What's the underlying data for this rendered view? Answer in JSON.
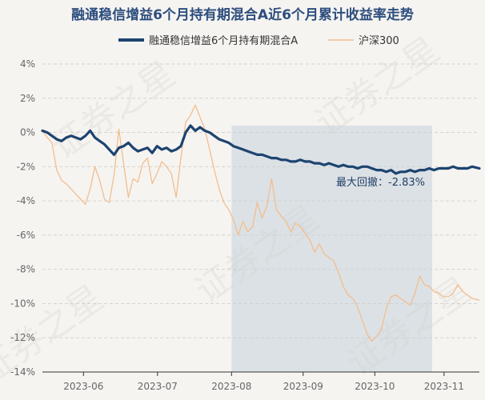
{
  "title": "融通稳信增益6个月持有期混合A近6个月累计收益率走势",
  "colors": {
    "background": "#f6f4f1",
    "fund": "#1d4470",
    "index": "#f2be8f",
    "highlight": "#c6d1db",
    "title": "#2d4e7e"
  },
  "watermark": "证券之星",
  "annotation": "最大回撤：-2.83%",
  "chart_data": {
    "type": "line",
    "title": "融通稳信增益6个月持有期混合A近6个月累计收益率走势",
    "xlabel": "",
    "ylabel": "",
    "ylim": [
      -14,
      4
    ],
    "yticks": [
      "4%",
      "2%",
      "0%",
      "-2%",
      "-4%",
      "-6%",
      "-8%",
      "-10%",
      "-12%",
      "-14%"
    ],
    "ytick_values": [
      4,
      2,
      0,
      -2,
      -4,
      -6,
      -8,
      -10,
      -12,
      -14
    ],
    "xticks": [
      "2023-06",
      "2023-07",
      "2023-08",
      "2023-09",
      "2023-10",
      "2023-11"
    ],
    "xtick_positions": [
      17.2,
      48.2,
      79.2,
      109.2,
      139.2,
      168.2
    ],
    "x_range": [
      0,
      183
    ],
    "grid": true,
    "legend": "top",
    "max_drawdown": {
      "label": "最大回撤：-2.83%",
      "x_start": 79.2,
      "x_end": 163.2
    },
    "series": [
      {
        "name": "融通稳信增益6个月持有期混合A",
        "x": [
          0,
          2,
          4,
          6,
          8,
          10,
          12,
          14,
          16,
          18,
          20,
          22,
          24,
          26,
          28,
          30,
          32,
          34,
          36,
          38,
          40,
          42,
          44,
          46,
          48,
          50,
          52,
          54,
          56,
          58,
          60,
          62,
          64,
          66,
          68,
          70,
          72,
          74,
          76,
          78,
          80,
          82,
          84,
          86,
          88,
          90,
          92,
          94,
          96,
          98,
          100,
          102,
          104,
          106,
          108,
          110,
          112,
          114,
          116,
          118,
          120,
          122,
          124,
          126,
          128,
          130,
          132,
          134,
          136,
          138,
          140,
          142,
          144,
          146,
          148,
          150,
          152,
          154,
          156,
          158,
          160,
          162,
          164,
          166,
          168,
          170,
          172,
          174,
          176,
          178,
          180,
          183
        ],
        "values": [
          0.1,
          0.0,
          -0.2,
          -0.4,
          -0.5,
          -0.3,
          -0.2,
          -0.3,
          -0.4,
          -0.2,
          0.1,
          -0.3,
          -0.5,
          -0.7,
          -1.0,
          -1.3,
          -0.9,
          -0.8,
          -0.6,
          -0.9,
          -1.1,
          -1.0,
          -0.9,
          -1.2,
          -0.8,
          -1.0,
          -0.9,
          -1.1,
          -1.0,
          -0.8,
          0.0,
          0.4,
          0.1,
          0.3,
          0.1,
          0.0,
          -0.2,
          -0.4,
          -0.5,
          -0.6,
          -0.8,
          -0.9,
          -1.0,
          -1.1,
          -1.2,
          -1.3,
          -1.3,
          -1.4,
          -1.5,
          -1.5,
          -1.6,
          -1.6,
          -1.7,
          -1.7,
          -1.6,
          -1.7,
          -1.7,
          -1.8,
          -1.8,
          -1.9,
          -1.8,
          -1.9,
          -2.0,
          -1.9,
          -2.0,
          -2.0,
          -2.1,
          -2.0,
          -2.0,
          -2.1,
          -2.2,
          -2.2,
          -2.3,
          -2.2,
          -2.4,
          -2.3,
          -2.3,
          -2.2,
          -2.3,
          -2.2,
          -2.2,
          -2.1,
          -2.2,
          -2.1,
          -2.1,
          -2.1,
          -2.0,
          -2.1,
          -2.1,
          -2.1,
          -2.0,
          -2.1
        ],
        "color": "#1d4470"
      },
      {
        "name": "沪深300",
        "x": [
          0,
          2,
          4,
          6,
          8,
          10,
          12,
          14,
          16,
          18,
          20,
          22,
          24,
          26,
          28,
          30,
          32,
          34,
          36,
          38,
          40,
          42,
          44,
          46,
          48,
          50,
          52,
          54,
          56,
          58,
          60,
          62,
          64,
          66,
          68,
          70,
          72,
          74,
          76,
          78,
          80,
          82,
          84,
          86,
          88,
          90,
          92,
          94,
          96,
          98,
          100,
          102,
          104,
          106,
          108,
          110,
          112,
          114,
          116,
          118,
          120,
          122,
          124,
          126,
          128,
          130,
          132,
          134,
          136,
          138,
          140,
          142,
          144,
          146,
          148,
          150,
          152,
          154,
          156,
          158,
          160,
          162,
          164,
          166,
          168,
          170,
          172,
          174,
          176,
          178,
          180,
          183
        ],
        "values": [
          0.1,
          -0.3,
          -0.6,
          -2.2,
          -2.8,
          -3.0,
          -3.3,
          -3.6,
          -3.9,
          -4.2,
          -3.3,
          -2.0,
          -2.8,
          -3.9,
          -4.1,
          -2.5,
          0.2,
          -1.8,
          -3.8,
          -2.7,
          -2.9,
          -1.8,
          -1.5,
          -3.0,
          -2.4,
          -1.7,
          -2.0,
          -2.4,
          -3.8,
          -1.5,
          0.6,
          1.0,
          1.6,
          0.9,
          0.2,
          -1.0,
          -2.2,
          -3.3,
          -4.1,
          -4.5,
          -5.1,
          -6.0,
          -5.2,
          -5.8,
          -5.5,
          -4.1,
          -5.0,
          -4.3,
          -2.7,
          -4.5,
          -4.9,
          -5.2,
          -5.8,
          -5.3,
          -5.5,
          -5.9,
          -6.3,
          -7.0,
          -6.5,
          -7.1,
          -7.3,
          -7.5,
          -8.2,
          -9.0,
          -9.5,
          -9.7,
          -10.2,
          -11.0,
          -11.8,
          -12.2,
          -11.9,
          -11.5,
          -10.3,
          -9.6,
          -9.5,
          -9.7,
          -9.9,
          -10.1,
          -9.4,
          -8.4,
          -8.9,
          -9.0,
          -9.3,
          -9.4,
          -9.6,
          -9.6,
          -9.4,
          -8.9,
          -9.3,
          -9.5,
          -9.7,
          -9.8
        ],
        "color": "#f2be8f"
      }
    ]
  }
}
